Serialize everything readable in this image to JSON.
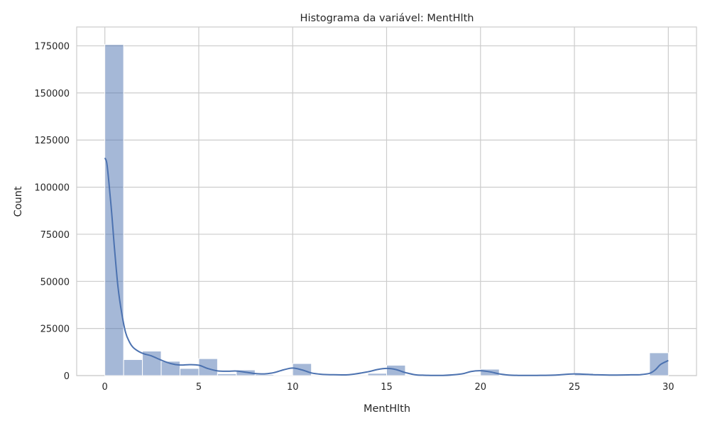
{
  "chart_data": {
    "type": "bar",
    "title": "Histograma da variável: MentHlth",
    "xlabel": "MentHlth",
    "ylabel": "Count",
    "xlim": [
      -1.5,
      31.5
    ],
    "ylim": [
      0,
      185000
    ],
    "xticks": [
      0,
      5,
      10,
      15,
      20,
      25,
      30
    ],
    "yticks": [
      0,
      25000,
      50000,
      75000,
      100000,
      125000,
      150000,
      175000
    ],
    "grid": true,
    "bar_color": "#4C72B0",
    "bar_alpha": 0.5,
    "kde_color": "#4C72B0",
    "bins": [
      {
        "x0": 0,
        "x1": 1,
        "count": 175700
      },
      {
        "x0": 1,
        "x1": 2,
        "count": 8500
      },
      {
        "x0": 2,
        "x1": 3,
        "count": 13000
      },
      {
        "x0": 3,
        "x1": 4,
        "count": 7600
      },
      {
        "x0": 4,
        "x1": 5,
        "count": 3800
      },
      {
        "x0": 5,
        "x1": 6,
        "count": 9000
      },
      {
        "x0": 6,
        "x1": 7,
        "count": 1000
      },
      {
        "x0": 7,
        "x1": 8,
        "count": 3000
      },
      {
        "x0": 8,
        "x1": 9,
        "count": 600
      },
      {
        "x0": 9,
        "x1": 10,
        "count": 100
      },
      {
        "x0": 10,
        "x1": 11,
        "count": 6400
      },
      {
        "x0": 11,
        "x1": 12,
        "count": 100
      },
      {
        "x0": 12,
        "x1": 13,
        "count": 400
      },
      {
        "x0": 13,
        "x1": 14,
        "count": 100
      },
      {
        "x0": 14,
        "x1": 15,
        "count": 1200
      },
      {
        "x0": 15,
        "x1": 16,
        "count": 5500
      },
      {
        "x0": 16,
        "x1": 17,
        "count": 100
      },
      {
        "x0": 17,
        "x1": 18,
        "count": 100
      },
      {
        "x0": 18,
        "x1": 19,
        "count": 100
      },
      {
        "x0": 19,
        "x1": 20,
        "count": 100
      },
      {
        "x0": 20,
        "x1": 21,
        "count": 3400
      },
      {
        "x0": 21,
        "x1": 22,
        "count": 300
      },
      {
        "x0": 22,
        "x1": 23,
        "count": 100
      },
      {
        "x0": 23,
        "x1": 24,
        "count": 100
      },
      {
        "x0": 24,
        "x1": 25,
        "count": 100
      },
      {
        "x0": 25,
        "x1": 26,
        "count": 1200
      },
      {
        "x0": 26,
        "x1": 27,
        "count": 100
      },
      {
        "x0": 27,
        "x1": 28,
        "count": 100
      },
      {
        "x0": 28,
        "x1": 29,
        "count": 300
      },
      {
        "x0": 29,
        "x1": 30,
        "count": 12100
      }
    ],
    "kde": {
      "x": [
        0,
        0.1,
        0.2,
        0.35,
        0.5,
        0.7,
        0.9,
        1.1,
        1.3,
        1.5,
        1.8,
        2.1,
        2.5,
        3.0,
        3.5,
        4.0,
        4.5,
        5.0,
        5.5,
        6.0,
        6.5,
        7.0,
        7.5,
        8.0,
        8.5,
        9.0,
        9.5,
        10.0,
        10.5,
        11.0,
        11.5,
        12.0,
        13.0,
        14.0,
        14.5,
        15.0,
        15.5,
        16.0,
        16.5,
        17.0,
        18.0,
        19.0,
        19.5,
        20.0,
        20.5,
        21.0,
        21.5,
        22.0,
        23.0,
        24.0,
        25.0,
        26.0,
        27.0,
        28.0,
        28.5,
        29.0,
        29.3,
        29.6,
        30.0
      ],
      "y": [
        115500,
        113000,
        104000,
        88000,
        69000,
        47000,
        33000,
        23000,
        18000,
        15000,
        12800,
        11500,
        10400,
        8200,
        6400,
        5600,
        5800,
        5500,
        3700,
        2500,
        2300,
        2400,
        1800,
        1100,
        900,
        1600,
        3000,
        4000,
        3000,
        1400,
        700,
        500,
        500,
        2000,
        3200,
        3800,
        3200,
        1600,
        500,
        200,
        100,
        900,
        2200,
        2600,
        2000,
        900,
        300,
        100,
        100,
        300,
        900,
        500,
        300,
        400,
        500,
        1200,
        3000,
        6000,
        8000
      ]
    }
  }
}
